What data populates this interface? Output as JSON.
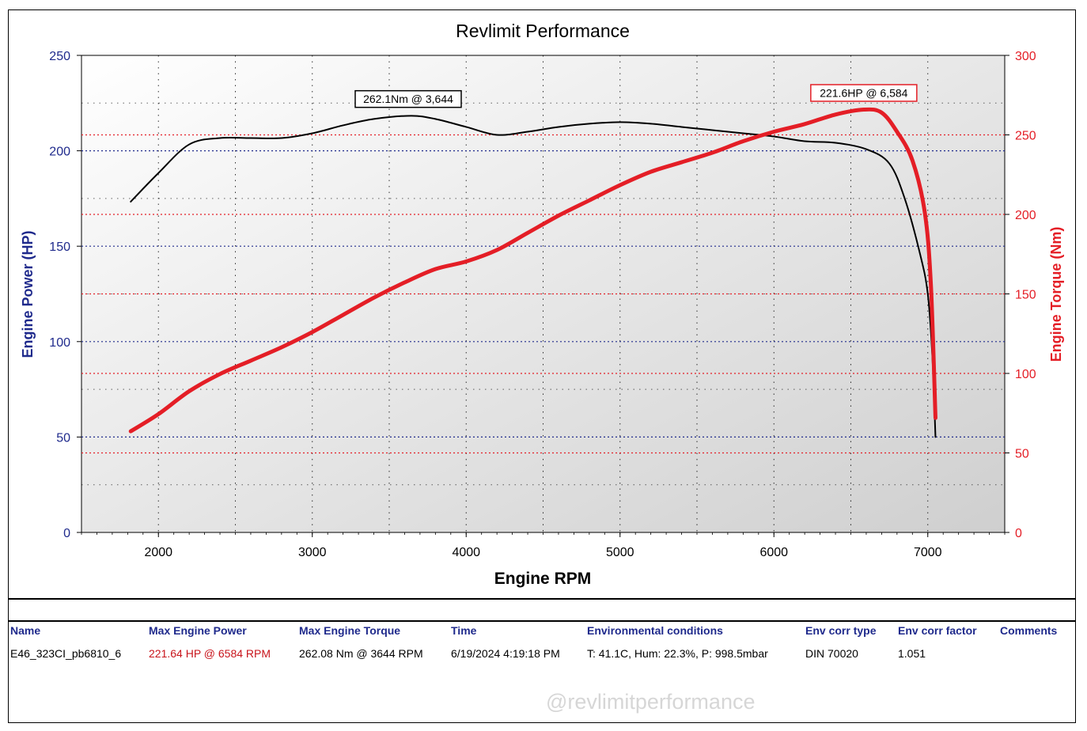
{
  "chart_data": {
    "type": "line",
    "title": "Revlimit Performance",
    "xlabel": "Engine RPM",
    "ylabel_left": "Engine Power (HP)",
    "ylabel_right": "Engine Torque (Nm)",
    "xlim": [
      1500,
      7500
    ],
    "ylim_left": [
      0,
      250
    ],
    "ylim_right": [
      0,
      300
    ],
    "x_ticks": [
      2000,
      3000,
      4000,
      5000,
      6000,
      7000
    ],
    "y_ticks_left": [
      0,
      50,
      100,
      150,
      200,
      250
    ],
    "y_ticks_right": [
      0,
      50,
      100,
      150,
      200,
      250,
      300
    ],
    "grid": true,
    "series": [
      {
        "axis": "right",
        "color": "#000000",
        "points": [
          [
            1820,
            208
          ],
          [
            2000,
            226
          ],
          [
            2200,
            244
          ],
          [
            2400,
            248
          ],
          [
            2600,
            248
          ],
          [
            2800,
            248
          ],
          [
            3000,
            251
          ],
          [
            3200,
            256
          ],
          [
            3400,
            260
          ],
          [
            3644,
            262
          ],
          [
            3800,
            260
          ],
          [
            4000,
            255
          ],
          [
            4200,
            250
          ],
          [
            4400,
            252
          ],
          [
            4600,
            255
          ],
          [
            4800,
            257
          ],
          [
            5000,
            258
          ],
          [
            5200,
            257
          ],
          [
            5400,
            255
          ],
          [
            5600,
            253
          ],
          [
            5800,
            251
          ],
          [
            6000,
            249
          ],
          [
            6200,
            246
          ],
          [
            6400,
            245
          ],
          [
            6600,
            241
          ],
          [
            6750,
            232
          ],
          [
            6850,
            210
          ],
          [
            6950,
            175
          ],
          [
            7000,
            150
          ],
          [
            7030,
            110
          ],
          [
            7050,
            60
          ]
        ]
      },
      {
        "axis": "left",
        "color": "#e41e26",
        "points": [
          [
            1820,
            53
          ],
          [
            2000,
            62
          ],
          [
            2200,
            74
          ],
          [
            2400,
            83
          ],
          [
            2600,
            90
          ],
          [
            2800,
            97
          ],
          [
            3000,
            105
          ],
          [
            3200,
            114
          ],
          [
            3400,
            123
          ],
          [
            3600,
            131
          ],
          [
            3800,
            138
          ],
          [
            4000,
            142
          ],
          [
            4200,
            148
          ],
          [
            4400,
            157
          ],
          [
            4600,
            166
          ],
          [
            4800,
            174
          ],
          [
            5000,
            182
          ],
          [
            5200,
            189
          ],
          [
            5400,
            194
          ],
          [
            5600,
            199
          ],
          [
            5800,
            205
          ],
          [
            6000,
            210
          ],
          [
            6200,
            214
          ],
          [
            6400,
            219
          ],
          [
            6584,
            221.6
          ],
          [
            6700,
            220
          ],
          [
            6800,
            210
          ],
          [
            6900,
            195
          ],
          [
            6980,
            168
          ],
          [
            7020,
            130
          ],
          [
            7050,
            60
          ]
        ]
      }
    ],
    "annotations": [
      {
        "label": "262.1Nm @ 3,644",
        "x": 3644,
        "y": 262.1,
        "axis": "right",
        "border": "#000000"
      },
      {
        "label": "221.6HP @ 6,584",
        "x": 6584,
        "y": 221.6,
        "axis": "left",
        "border": "#e41e26"
      }
    ],
    "ref_lines_left": [
      50,
      100,
      150,
      200
    ],
    "ref_lines_right": [
      50,
      100,
      150,
      200,
      250
    ]
  },
  "table": {
    "headers": [
      "Name",
      "Max Engine Power",
      "Max Engine Torque",
      "Time",
      "Environmental conditions",
      "Env corr type",
      "Env corr factor",
      "Comments"
    ],
    "row": [
      "E46_323CI_pb6810_6",
      "221.64 HP @ 6584 RPM",
      "262.08 Nm @ 3644 RPM",
      "6/19/2024 4:19:18 PM",
      "T: 41.1C, Hum: 22.3%, P: 998.5mbar",
      "DIN 70020",
      "1.051",
      ""
    ]
  },
  "watermark": "@revlimitperformance",
  "colors": {
    "axis_left": "#1f2a8c",
    "axis_right": "#e41e26",
    "power": "#e41e26",
    "torque": "#000000"
  }
}
